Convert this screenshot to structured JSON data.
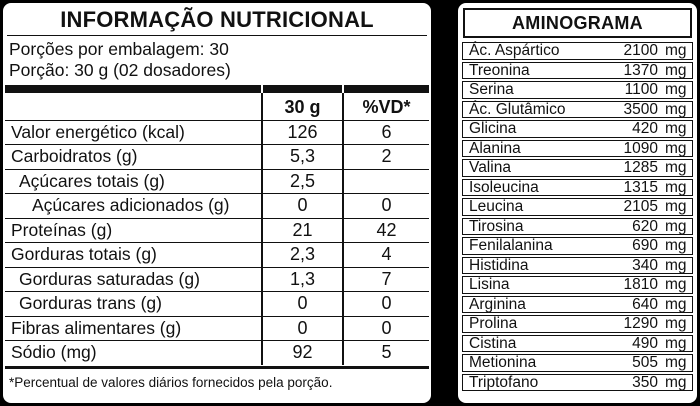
{
  "colors": {
    "background": "#000000",
    "panel": "#ffffff",
    "text": "#111111"
  },
  "nutrition_panel": {
    "title": "INFORMAÇÃO NUTRICIONAL",
    "servings_line": "Porções por embalagem: 30",
    "serving_line": "Porção: 30 g (02 dosadores)",
    "columns": [
      "30 g",
      "%VD*"
    ],
    "rows": [
      {
        "label": "Valor energético (kcal)",
        "amount": "126",
        "vd": "6",
        "indent": 0
      },
      {
        "label": "Carboidratos (g)",
        "amount": "5,3",
        "vd": "2",
        "indent": 0
      },
      {
        "label": "Açúcares totais (g)",
        "amount": "2,5",
        "vd": "",
        "indent": 1
      },
      {
        "label": "Açúcares adicionados (g)",
        "amount": "0",
        "vd": "0",
        "indent": 2
      },
      {
        "label": "Proteínas (g)",
        "amount": "21",
        "vd": "42",
        "indent": 0
      },
      {
        "label": "Gorduras totais (g)",
        "amount": "2,3",
        "vd": "4",
        "indent": 0
      },
      {
        "label": "Gorduras saturadas (g)",
        "amount": "1,3",
        "vd": "7",
        "indent": 1
      },
      {
        "label": "Gorduras trans (g)",
        "amount": "0",
        "vd": "0",
        "indent": 1
      },
      {
        "label": "Fibras alimentares (g)",
        "amount": "0",
        "vd": "0",
        "indent": 0
      },
      {
        "label": "Sódio (mg)",
        "amount": "92",
        "vd": "5",
        "indent": 0
      }
    ],
    "footnote": "*Percentual de valores diários fornecidos pela porção."
  },
  "aminogram_panel": {
    "title": "AMINOGRAMA",
    "unit": "mg",
    "rows": [
      {
        "name": "Ác. Aspártico",
        "value": "2100"
      },
      {
        "name": "Treonina",
        "value": "1370"
      },
      {
        "name": "Serina",
        "value": "1100"
      },
      {
        "name": "Ác. Glutâmico",
        "value": "3500"
      },
      {
        "name": "Glicina",
        "value": "420"
      },
      {
        "name": "Alanina",
        "value": "1090"
      },
      {
        "name": "Valina",
        "value": "1285"
      },
      {
        "name": "Isoleucina",
        "value": "1315"
      },
      {
        "name": "Leucina",
        "value": "2105"
      },
      {
        "name": "Tirosina",
        "value": "620"
      },
      {
        "name": "Fenilalanina",
        "value": "690"
      },
      {
        "name": "Histidina",
        "value": "340"
      },
      {
        "name": "Lisina",
        "value": "1810"
      },
      {
        "name": "Arginina",
        "value": "640"
      },
      {
        "name": "Prolina",
        "value": "1290"
      },
      {
        "name": "Cistina",
        "value": "490"
      },
      {
        "name": "Metionina",
        "value": "505"
      },
      {
        "name": "Triptofano",
        "value": "350"
      }
    ]
  }
}
